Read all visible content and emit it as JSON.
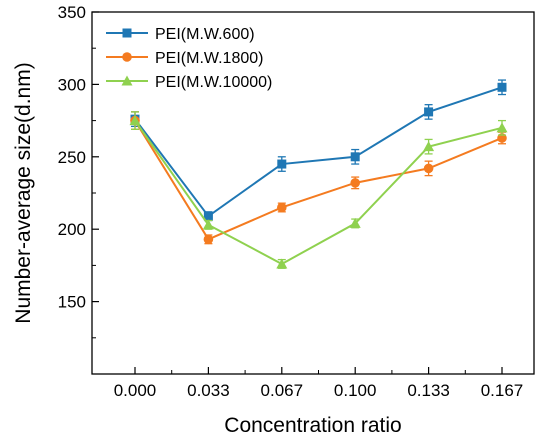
{
  "chart_data": {
    "type": "line",
    "title": "",
    "xlabel": "Concentration ratio",
    "ylabel": "Number-average size(d.nm)",
    "categories": [
      "0.000",
      "0.033",
      "0.067",
      "0.100",
      "0.133",
      "0.167"
    ],
    "ylim": [
      100,
      350
    ],
    "yticks": [
      150,
      200,
      250,
      300,
      350
    ],
    "grid": false,
    "legend_position": "top-left",
    "series": [
      {
        "name": "PEI(M.W.600)",
        "color": "#1f77b4",
        "marker": "square",
        "values": [
          276,
          209,
          245,
          250,
          281,
          298
        ],
        "errors": [
          5,
          3,
          5,
          5,
          5,
          5
        ]
      },
      {
        "name": "PEI(M.W.1800)",
        "color": "#f47b20",
        "marker": "circle",
        "values": [
          275,
          193,
          215,
          232,
          242,
          263
        ],
        "errors": [
          6,
          3,
          3,
          4,
          5,
          4
        ]
      },
      {
        "name": "PEI(M.W.10000)",
        "color": "#8fd14f",
        "marker": "triangle",
        "values": [
          275,
          203,
          176,
          204,
          257,
          270
        ],
        "errors": [
          6,
          3,
          3,
          3,
          5,
          5
        ]
      }
    ]
  }
}
